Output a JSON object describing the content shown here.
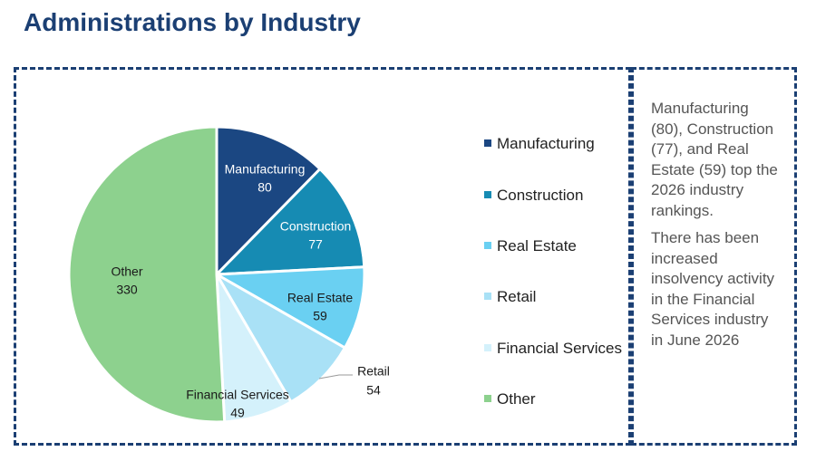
{
  "title": "Administrations by Industry",
  "chart_data": {
    "type": "pie",
    "title": "",
    "categories": [
      "Manufacturing",
      "Construction",
      "Real Estate",
      "Retail",
      "Financial Services",
      "Other"
    ],
    "values": [
      80,
      77,
      59,
      54,
      49,
      330
    ],
    "colors": [
      "#1b4782",
      "#168bb3",
      "#6ad0f2",
      "#a9e1f6",
      "#d4f1fb",
      "#8dd18e"
    ],
    "label_colors": [
      "#ffffff",
      "#ffffff",
      "#1a1a1a",
      "#1a1a1a",
      "#1a1a1a",
      "#1a1a1a"
    ],
    "legend_position": "right"
  },
  "notes": {
    "paragraph1": "Manufacturing (80), Construction (77), and Real Estate (59) top the 2026 industry rankings.",
    "paragraph2": "There has been increased insolvency activity in the Financial Services industry in June 2026"
  }
}
